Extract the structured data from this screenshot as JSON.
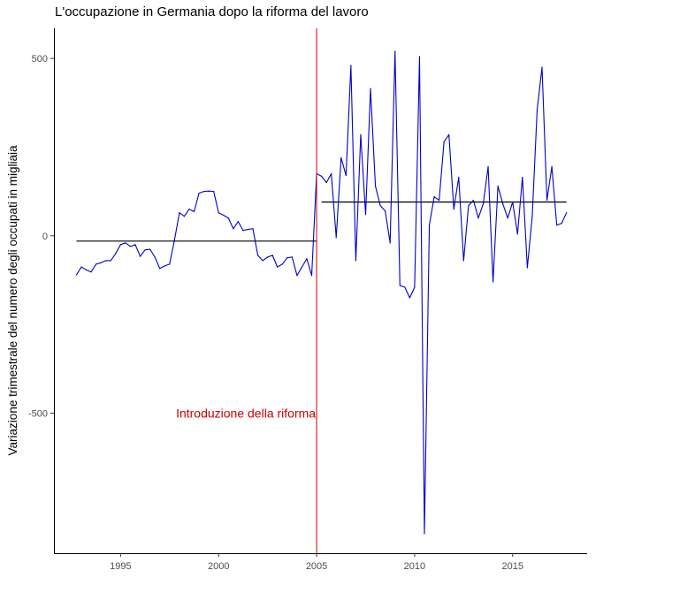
{
  "chart_data": {
    "type": "line",
    "title": "L'occupazione in Germania dopo la riforma del lavoro",
    "xlabel": "",
    "ylabel": "Variazione trimestrale del numero degli occupati in migliaia",
    "xlim": [
      1991.6,
      2018.8
    ],
    "ylim": [
      -895,
      585
    ],
    "x_ticks": [
      1995,
      2000,
      2005,
      2010,
      2015
    ],
    "y_ticks": [
      500,
      0,
      -500
    ],
    "grid": false,
    "series": [
      {
        "color": "#0000cc",
        "points": [
          [
            1992.75,
            -110
          ],
          [
            1993.0,
            -88
          ],
          [
            1993.25,
            -96
          ],
          [
            1993.5,
            -102
          ],
          [
            1993.75,
            -80
          ],
          [
            1994.0,
            -76
          ],
          [
            1994.25,
            -70
          ],
          [
            1994.5,
            -70
          ],
          [
            1994.75,
            -50
          ],
          [
            1995.0,
            -25
          ],
          [
            1995.25,
            -20
          ],
          [
            1995.5,
            -30
          ],
          [
            1995.75,
            -25
          ],
          [
            1996.0,
            -58
          ],
          [
            1996.25,
            -40
          ],
          [
            1996.5,
            -38
          ],
          [
            1996.75,
            -60
          ],
          [
            1997.0,
            -92
          ],
          [
            1997.25,
            -85
          ],
          [
            1997.5,
            -80
          ],
          [
            1997.75,
            -12
          ],
          [
            1998.0,
            65
          ],
          [
            1998.25,
            55
          ],
          [
            1998.5,
            75
          ],
          [
            1998.75,
            68
          ],
          [
            1999.0,
            120
          ],
          [
            1999.25,
            125
          ],
          [
            1999.5,
            126
          ],
          [
            1999.75,
            125
          ],
          [
            2000.0,
            65
          ],
          [
            2000.25,
            58
          ],
          [
            2000.5,
            50
          ],
          [
            2000.75,
            20
          ],
          [
            2001.0,
            40
          ],
          [
            2001.25,
            15
          ],
          [
            2001.5,
            18
          ],
          [
            2001.75,
            20
          ],
          [
            2002.0,
            -55
          ],
          [
            2002.25,
            -70
          ],
          [
            2002.5,
            -60
          ],
          [
            2002.75,
            -55
          ],
          [
            2003.0,
            -88
          ],
          [
            2003.25,
            -80
          ],
          [
            2003.5,
            -62
          ],
          [
            2003.75,
            -60
          ],
          [
            2004.0,
            -112
          ],
          [
            2004.25,
            -88
          ],
          [
            2004.5,
            -65
          ],
          [
            2004.75,
            -112
          ],
          [
            2005.0,
            175
          ],
          [
            2005.25,
            168
          ],
          [
            2005.5,
            150
          ],
          [
            2005.75,
            175
          ],
          [
            2006.0,
            -5
          ],
          [
            2006.25,
            220
          ],
          [
            2006.5,
            170
          ],
          [
            2006.75,
            480
          ],
          [
            2007.0,
            -70
          ],
          [
            2007.25,
            285
          ],
          [
            2007.5,
            60
          ],
          [
            2007.75,
            415
          ],
          [
            2008.0,
            140
          ],
          [
            2008.25,
            85
          ],
          [
            2008.5,
            70
          ],
          [
            2008.75,
            -20
          ],
          [
            2009.0,
            520
          ],
          [
            2009.25,
            -140
          ],
          [
            2009.5,
            -145
          ],
          [
            2009.75,
            -175
          ],
          [
            2010.0,
            -145
          ],
          [
            2010.25,
            505
          ],
          [
            2010.5,
            -840
          ],
          [
            2010.75,
            30
          ],
          [
            2011.0,
            110
          ],
          [
            2011.25,
            100
          ],
          [
            2011.5,
            265
          ],
          [
            2011.75,
            285
          ],
          [
            2012.0,
            75
          ],
          [
            2012.25,
            165
          ],
          [
            2012.5,
            -70
          ],
          [
            2012.75,
            85
          ],
          [
            2013.0,
            100
          ],
          [
            2013.25,
            50
          ],
          [
            2013.5,
            90
          ],
          [
            2013.75,
            195
          ],
          [
            2014.0,
            -130
          ],
          [
            2014.25,
            140
          ],
          [
            2014.5,
            90
          ],
          [
            2014.75,
            50
          ],
          [
            2015.0,
            95
          ],
          [
            2015.25,
            5
          ],
          [
            2015.5,
            165
          ],
          [
            2015.75,
            -90
          ],
          [
            2016.0,
            55
          ],
          [
            2016.25,
            355
          ],
          [
            2016.5,
            475
          ],
          [
            2016.75,
            100
          ],
          [
            2017.0,
            195
          ],
          [
            2017.25,
            30
          ],
          [
            2017.5,
            35
          ],
          [
            2017.75,
            65
          ]
        ]
      }
    ],
    "mean_lines": [
      {
        "x": [
          1992.75,
          2005.0
        ],
        "y": -15,
        "color": "#000000"
      },
      {
        "x": [
          2005.25,
          2017.75
        ],
        "y": 95,
        "color": "#000000"
      }
    ],
    "vline": {
      "x": 2005.0,
      "color": "#cc0000"
    },
    "annotation": {
      "text": "Introduzione della riforma",
      "x": 2005.0,
      "y": -500,
      "color": "#cc0000"
    }
  }
}
